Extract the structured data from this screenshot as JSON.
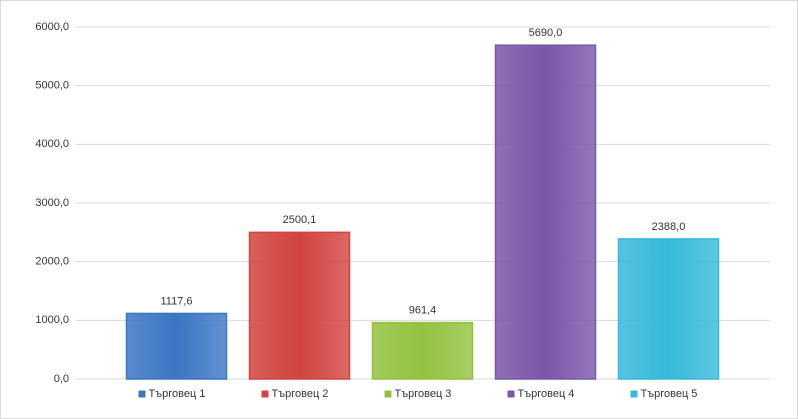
{
  "chart_data": {
    "type": "bar",
    "categories": [
      "Търговец 1",
      "Търговец 2",
      "Търговец 3",
      "Търговец 4",
      "Търговец 5"
    ],
    "values": [
      1117.6,
      2500.1,
      961.4,
      5690.0,
      2388.0
    ],
    "value_labels": [
      "1117,6",
      "2500,1",
      "961,4",
      "5690,0",
      "2388,0"
    ],
    "colors": [
      "#3b76c4",
      "#d1433f",
      "#93c13f",
      "#7b56a9",
      "#36b9d9"
    ],
    "ylim": [
      0,
      6000
    ],
    "yticks": [
      {
        "value": 0,
        "label": "0,0"
      },
      {
        "value": 1000,
        "label": "1000,0"
      },
      {
        "value": 2000,
        "label": "2000,0"
      },
      {
        "value": 3000,
        "label": "3000,0"
      },
      {
        "value": 4000,
        "label": "4000,0"
      },
      {
        "value": 5000,
        "label": "5000,0"
      },
      {
        "value": 6000,
        "label": "6000,0"
      }
    ],
    "grid": true,
    "legend": "bottom"
  }
}
